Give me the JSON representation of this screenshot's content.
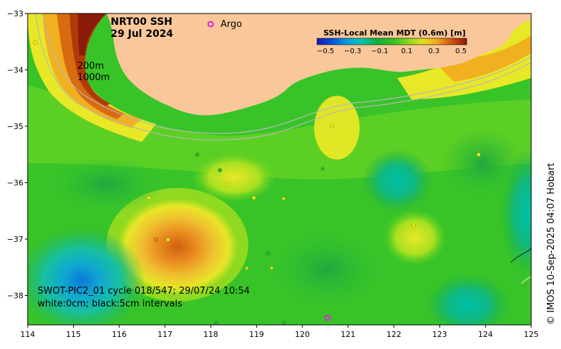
{
  "map": {
    "title_line1": "NRT00 SSH",
    "title_line2": "29 Jul 2024",
    "legend_argo": "Argo",
    "isobath_200": "200m",
    "isobath_1000": "1000m",
    "pass_info": "SWOT-PIC2_01 cycle 018/547; 29/07/24 10:54",
    "contour_info": "white:0cm; black:5cm intervals",
    "credit": "© IMOS 10-Sep-2025 04:07 Hobart",
    "colors": {
      "land": "#F9C79A",
      "argo_marker": "#E020E0",
      "isobath": "#B8B8B8"
    },
    "colorbar": {
      "title": "SSH-Local Mean MDT (0.6m) [m]",
      "ticks": [
        "−0.5",
        "−0.3",
        "−0.1",
        "0.1",
        "0.3",
        "0.5"
      ],
      "range": [
        -0.5,
        0.5
      ],
      "colors": [
        "#1A1AB5",
        "#0066DD",
        "#00AACC",
        "#00C8A0",
        "#10B040",
        "#3CC820",
        "#80DD20",
        "#E8E826",
        "#F0B020",
        "#E07810",
        "#B03A08",
        "#8C1A08"
      ]
    },
    "xaxis": {
      "ticks": [
        "114",
        "115",
        "116",
        "117",
        "118",
        "119",
        "120",
        "121",
        "122",
        "123",
        "124",
        "125"
      ]
    },
    "yaxis": {
      "ticks": [
        "−33",
        "−34",
        "−35",
        "−36",
        "−37",
        "−38"
      ]
    }
  }
}
